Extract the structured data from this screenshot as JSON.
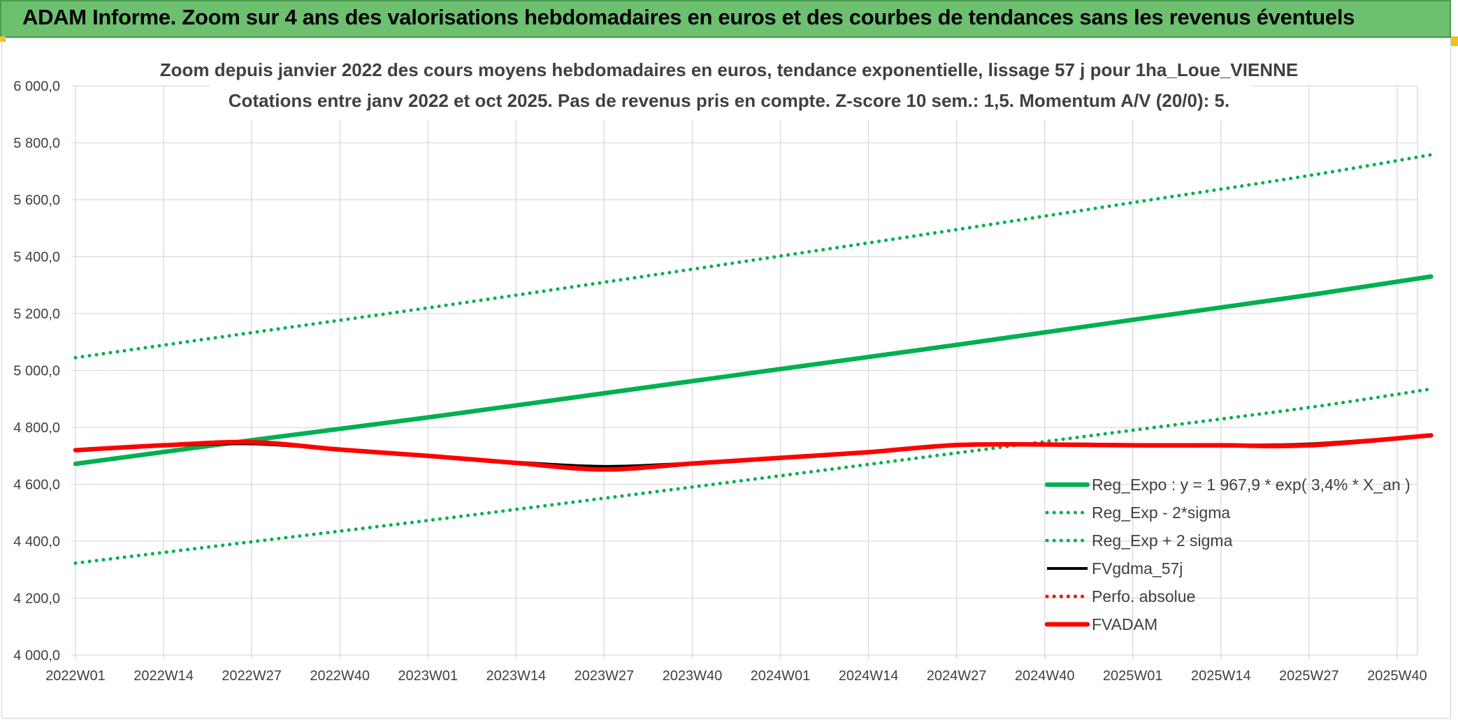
{
  "header": {
    "title": "ADAM Informe. Zoom sur 4 ans des valorisations hebdomadaires en euros et des courbes de tendances sans les revenus éventuels"
  },
  "colors": {
    "header_bg": "#6cc070",
    "reg_expo": "#00b050",
    "fvgdma": "#000000",
    "perfo": "#ff0000",
    "fvadam": "#ff0000",
    "grid": "#d9d9d9",
    "text": "#404040"
  },
  "chart_data": {
    "type": "line",
    "title": "Zoom depuis janvier 2022 des cours moyens hebdomadaires en euros, tendance exponentielle, lissage 57 j pour 1ha_Loue_VIENNE",
    "subtitle": "Cotations entre janv 2022 et oct 2025. Pas de revenus pris en compte. Z-score 10 sem.: 1,5. Momentum A/V (20/0): 5.",
    "ylim": [
      4000,
      6000
    ],
    "yticks": [
      "6 000,0",
      "5 800,0",
      "5 600,0",
      "5 400,0",
      "5 200,0",
      "5 000,0",
      "4 800,0",
      "4 600,0",
      "4 400,0",
      "4 200,0",
      "4 000,0"
    ],
    "ytick_values": [
      6000,
      5800,
      5600,
      5400,
      5200,
      5000,
      4800,
      4600,
      4400,
      4200,
      4000
    ],
    "xticks": [
      "2022W01",
      "2022W14",
      "2022W27",
      "2022W40",
      "2023W01",
      "2023W14",
      "2023W27",
      "2023W40",
      "2024W01",
      "2024W14",
      "2024W27",
      "2024W40",
      "2025W01",
      "2025W14",
      "2025W27",
      "2025W40"
    ],
    "x_weeks_total": 198,
    "grid": true,
    "legend_position": "bottom-right",
    "series": [
      {
        "name": "Reg_Expo : y = 1 967,9 * exp( 3,4% *  X_an )",
        "style": "solid-thick",
        "color": "#00b050",
        "points": [
          [
            "2022W01",
            4672
          ],
          [
            "2022W27",
            4755
          ],
          [
            "2023W01",
            4835
          ],
          [
            "2023W27",
            4920
          ],
          [
            "2024W01",
            5005
          ],
          [
            "2024W27",
            5090
          ],
          [
            "2025W01",
            5178
          ],
          [
            "2025W27",
            5265
          ],
          [
            "2025W45",
            5330
          ]
        ]
      },
      {
        "name": "Reg_Exp - 2*sigma",
        "style": "dotted",
        "color": "#00b050",
        "points": [
          [
            "2022W01",
            4323
          ],
          [
            "2022W27",
            4398
          ],
          [
            "2023W01",
            4473
          ],
          [
            "2023W27",
            4551
          ],
          [
            "2024W01",
            4630
          ],
          [
            "2024W27",
            4710
          ],
          [
            "2025W01",
            4790
          ],
          [
            "2025W27",
            4870
          ],
          [
            "2025W45",
            4935
          ]
        ]
      },
      {
        "name": "Reg_Exp + 2 sigma",
        "style": "dotted",
        "color": "#00b050",
        "points": [
          [
            "2022W01",
            5045
          ],
          [
            "2022W27",
            5133
          ],
          [
            "2023W01",
            5220
          ],
          [
            "2023W27",
            5310
          ],
          [
            "2024W01",
            5402
          ],
          [
            "2024W27",
            5495
          ],
          [
            "2025W01",
            5590
          ],
          [
            "2025W27",
            5685
          ],
          [
            "2025W45",
            5758
          ]
        ]
      },
      {
        "name": "FVgdma_57j",
        "style": "solid",
        "color": "#000000",
        "points": [
          [
            "2022W01",
            4720
          ],
          [
            "2022W14",
            4735
          ],
          [
            "2022W27",
            4742
          ],
          [
            "2022W40",
            4722
          ],
          [
            "2023W01",
            4700
          ],
          [
            "2023W14",
            4678
          ],
          [
            "2023W27",
            4663
          ],
          [
            "2023W40",
            4675
          ],
          [
            "2024W01",
            4695
          ],
          [
            "2024W14",
            4713
          ],
          [
            "2024W27",
            4738
          ],
          [
            "2024W40",
            4742
          ],
          [
            "2025W01",
            4740
          ],
          [
            "2025W14",
            4738
          ],
          [
            "2025W27",
            4742
          ],
          [
            "2025W45",
            4772
          ]
        ]
      },
      {
        "name": "Perfo. absolue",
        "style": "dotted",
        "color": "#ff0000",
        "points": []
      },
      {
        "name": "FVADAM",
        "style": "solid-thick",
        "color": "#ff0000",
        "points": [
          [
            "2022W01",
            4720
          ],
          [
            "2022W14",
            4737
          ],
          [
            "2022W27",
            4748
          ],
          [
            "2022W40",
            4722
          ],
          [
            "2023W01",
            4700
          ],
          [
            "2023W14",
            4675
          ],
          [
            "2023W27",
            4652
          ],
          [
            "2023W40",
            4673
          ],
          [
            "2024W01",
            4693
          ],
          [
            "2024W14",
            4713
          ],
          [
            "2024W27",
            4738
          ],
          [
            "2024W40",
            4740
          ],
          [
            "2025W01",
            4737
          ],
          [
            "2025W14",
            4737
          ],
          [
            "2025W27",
            4737
          ],
          [
            "2025W45",
            4772
          ]
        ]
      }
    ]
  }
}
